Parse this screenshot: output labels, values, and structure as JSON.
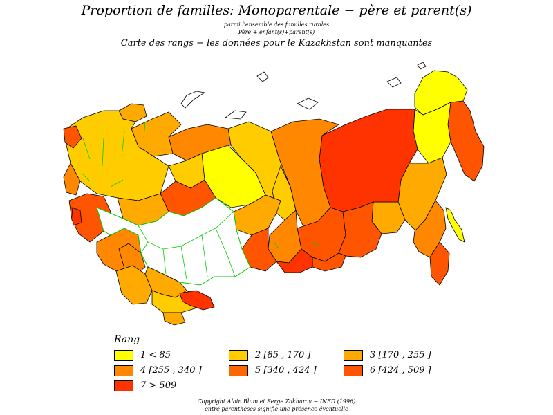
{
  "title": "Proportion de familles: Monoparentale − père et parent(s)",
  "subtitle_1": "parmi l'ensemble des familles rurales",
  "subtitle_2": "Père +  enfant(s)+parent(s)",
  "subtitle_3": "Carte des rangs − les données pour le Kazakhstan sont manquantes",
  "legend": {
    "title": "Rang",
    "items": [
      {
        "label": "1  <  85",
        "color": "#ffff00"
      },
      {
        "label": "2  [85  ,  170  ]",
        "color": "#ffcc00"
      },
      {
        "label": "3  [170  ,  255  ]",
        "color": "#ffaa00"
      },
      {
        "label": "4  [255  ,  340  ]",
        "color": "#ff8800"
      },
      {
        "label": "5  [340  ,  424  ]",
        "color": "#ff6600"
      },
      {
        "label": "6  [424  ,  509  ]",
        "color": "#ff5500"
      },
      {
        "label": "7  >  509",
        "color": "#ff3300"
      }
    ]
  },
  "colors": {
    "missing_data": "#ffffff",
    "border_green": "#00cc00",
    "outline": "#000000"
  },
  "copyright": "Copyright Alain Blum et Serge Zakharov − INED (1996)",
  "note": "entre parenthèses signifie une présence éventuelle"
}
